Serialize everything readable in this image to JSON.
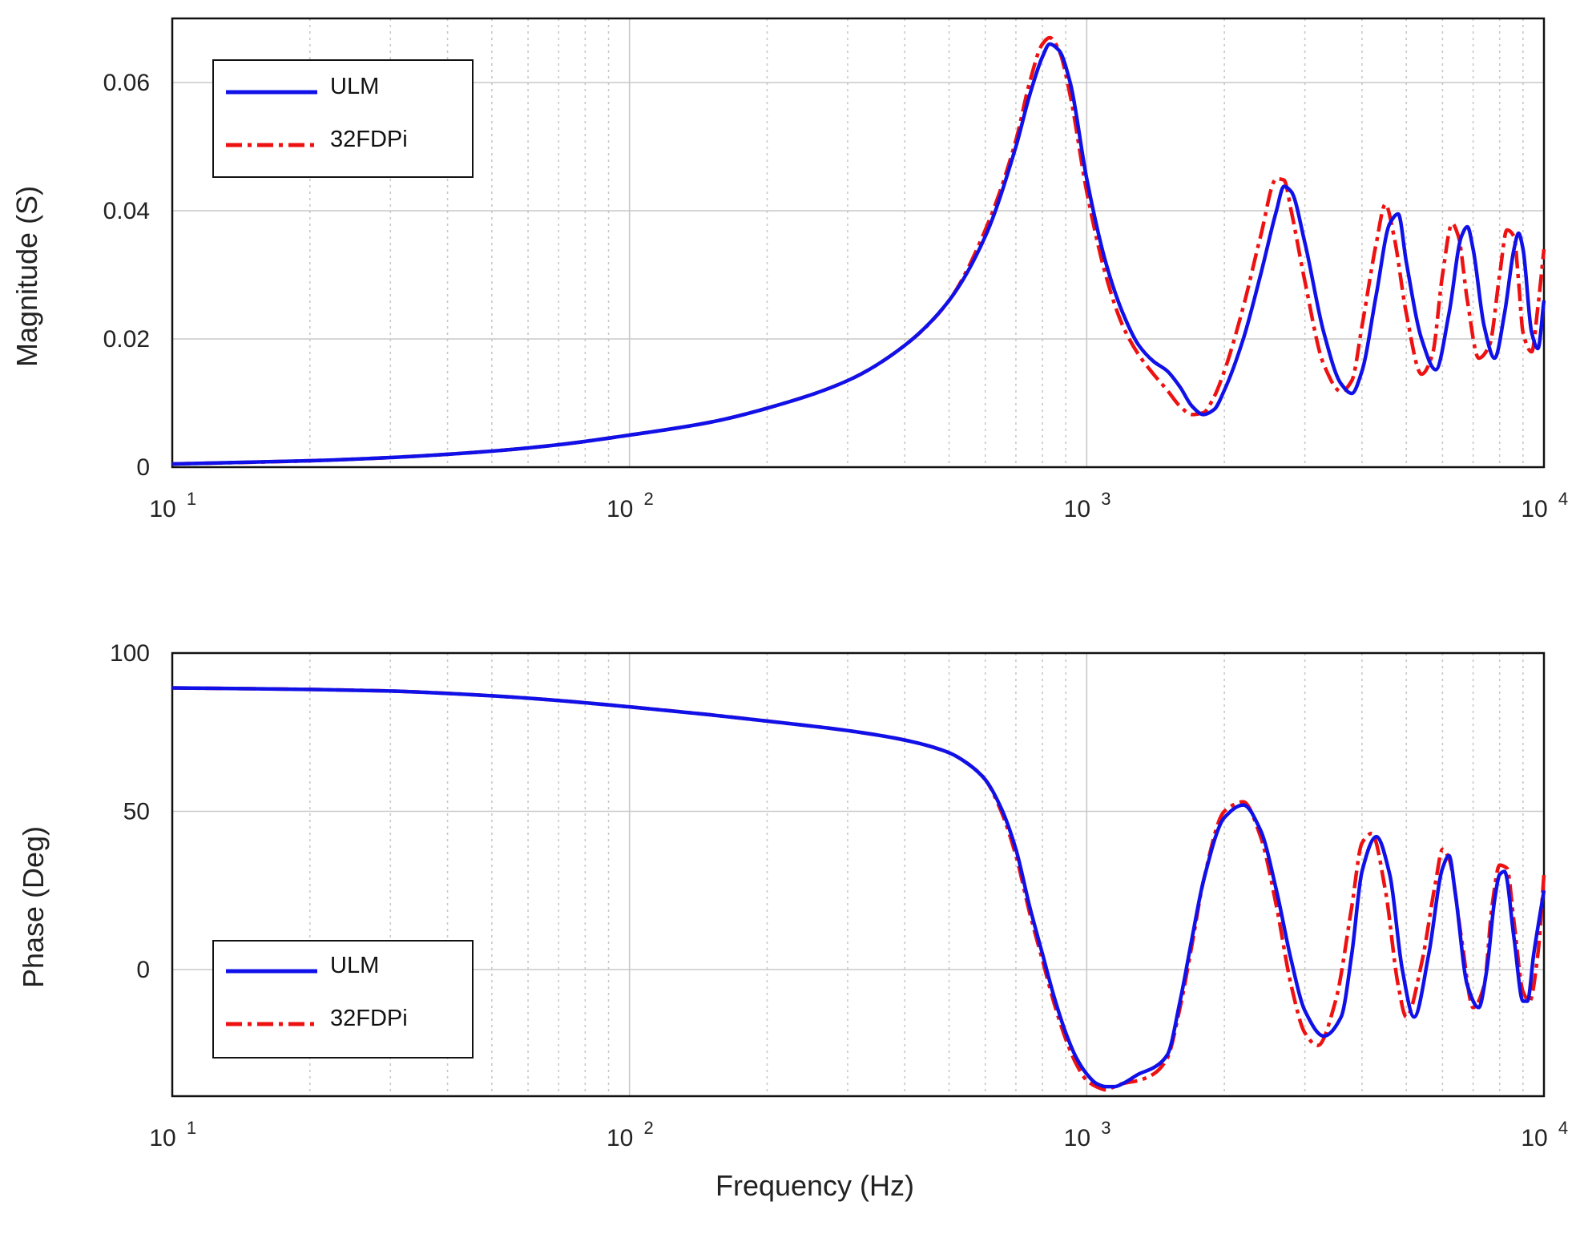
{
  "colors": {
    "ulm": "#1010e8",
    "fdpi": "#ee1111",
    "grid": "#c8c8c8",
    "axis": "#111111"
  },
  "figure": {
    "xlabel": "Frequency (Hz)"
  },
  "chart_data": [
    {
      "type": "line",
      "id": "magnitude",
      "title": "",
      "xlabel": "Frequency (Hz)",
      "ylabel": "Magnitude (S)",
      "xscale": "log",
      "xlim": [
        10,
        10000
      ],
      "ylim": [
        0,
        0.07
      ],
      "xticks": [
        {
          "base": "10",
          "exp": "1"
        },
        {
          "base": "10",
          "exp": "2"
        },
        {
          "base": "10",
          "exp": "3"
        },
        {
          "base": "10",
          "exp": "4"
        }
      ],
      "yticks": [
        {
          "value": 0,
          "label": "0"
        },
        {
          "value": 0.02,
          "label": "0.02"
        },
        {
          "value": 0.04,
          "label": "0.04"
        },
        {
          "value": 0.06,
          "label": "0.06"
        }
      ],
      "grid": true,
      "legend": {
        "placement": "top-left",
        "entries": [
          "ULM",
          "32FDPi"
        ]
      },
      "series": [
        {
          "name": "ULM",
          "color": "#1010e8",
          "style": "solid",
          "x": [
            10,
            20,
            30,
            50,
            70,
            100,
            150,
            200,
            300,
            400,
            500,
            600,
            700,
            750,
            800,
            830,
            870,
            920,
            1000,
            1100,
            1200,
            1300,
            1400,
            1500,
            1600,
            1700,
            1800,
            1900,
            2000,
            2200,
            2400,
            2600,
            2700,
            2800,
            3000,
            3300,
            3600,
            3800,
            4000,
            4300,
            4600,
            4800,
            5000,
            5400,
            5800,
            6200,
            6600,
            6800,
            7000,
            7400,
            7800,
            8200,
            8600,
            8800,
            9000,
            9400,
            9700,
            10000
          ],
          "y": [
            0.0005,
            0.001,
            0.0015,
            0.0025,
            0.0035,
            0.005,
            0.007,
            0.0092,
            0.0135,
            0.019,
            0.026,
            0.036,
            0.05,
            0.058,
            0.064,
            0.066,
            0.065,
            0.06,
            0.045,
            0.032,
            0.024,
            0.019,
            0.0165,
            0.015,
            0.0125,
            0.0095,
            0.0082,
            0.009,
            0.012,
            0.02,
            0.03,
            0.04,
            0.0438,
            0.043,
            0.035,
            0.021,
            0.013,
            0.0115,
            0.015,
            0.027,
            0.038,
            0.0395,
            0.032,
            0.02,
            0.0152,
            0.024,
            0.036,
            0.0375,
            0.034,
            0.022,
            0.017,
            0.024,
            0.034,
            0.0365,
            0.034,
            0.021,
            0.0185,
            0.026
          ]
        },
        {
          "name": "32FDPi",
          "color": "#ee1111",
          "style": "dashdot",
          "x": [
            10,
            20,
            30,
            50,
            70,
            100,
            150,
            200,
            300,
            400,
            500,
            600,
            700,
            750,
            800,
            830,
            870,
            920,
            1000,
            1100,
            1200,
            1300,
            1400,
            1500,
            1600,
            1700,
            1800,
            1900,
            2000,
            2200,
            2400,
            2600,
            2700,
            2800,
            3000,
            3300,
            3600,
            3800,
            4000,
            4300,
            4500,
            4700,
            5000,
            5400,
            5700,
            6000,
            6300,
            6500,
            6800,
            7200,
            7600,
            8000,
            8300,
            8600,
            8800,
            9000,
            9400,
            9700,
            10000
          ],
          "y": [
            0.0005,
            0.001,
            0.0015,
            0.0025,
            0.0035,
            0.005,
            0.007,
            0.0092,
            0.0135,
            0.019,
            0.026,
            0.037,
            0.051,
            0.06,
            0.066,
            0.067,
            0.065,
            0.058,
            0.043,
            0.03,
            0.022,
            0.0175,
            0.0145,
            0.012,
            0.0095,
            0.0082,
            0.0085,
            0.011,
            0.015,
            0.025,
            0.036,
            0.045,
            0.0448,
            0.04,
            0.029,
            0.016,
            0.0118,
            0.0135,
            0.022,
            0.035,
            0.041,
            0.036,
            0.024,
            0.0145,
            0.0175,
            0.03,
            0.038,
            0.036,
            0.026,
            0.017,
            0.019,
            0.03,
            0.037,
            0.036,
            0.029,
            0.021,
            0.018,
            0.025,
            0.034
          ]
        }
      ]
    },
    {
      "type": "line",
      "id": "phase",
      "title": "",
      "xlabel": "Frequency (Hz)",
      "ylabel": "Phase (Deg)",
      "xscale": "log",
      "xlim": [
        10,
        10000
      ],
      "ylim": [
        -40,
        100
      ],
      "xticks": [
        {
          "base": "10",
          "exp": "1"
        },
        {
          "base": "10",
          "exp": "2"
        },
        {
          "base": "10",
          "exp": "3"
        },
        {
          "base": "10",
          "exp": "4"
        }
      ],
      "yticks": [
        {
          "value": 0,
          "label": "0"
        },
        {
          "value": 50,
          "label": "50"
        },
        {
          "value": 100,
          "label": "100"
        }
      ],
      "grid": true,
      "legend": {
        "placement": "bottom-left",
        "entries": [
          "ULM",
          "32FDPi"
        ]
      },
      "series": [
        {
          "name": "ULM",
          "color": "#1010e8",
          "style": "solid",
          "x": [
            10,
            20,
            30,
            50,
            70,
            100,
            150,
            200,
            300,
            400,
            500,
            550,
            600,
            650,
            700,
            750,
            800,
            850,
            900,
            950,
            1000,
            1050,
            1100,
            1150,
            1200,
            1300,
            1400,
            1500,
            1600,
            1700,
            1800,
            2000,
            2200,
            2400,
            2600,
            2800,
            3000,
            3300,
            3600,
            3800,
            4000,
            4300,
            4600,
            4900,
            5200,
            5600,
            6000,
            6200,
            6400,
            6800,
            7200,
            7500,
            7800,
            8000,
            8200,
            8600,
            9000,
            9200,
            9500,
            10000
          ],
          "y": [
            89,
            88.5,
            88,
            86.5,
            85,
            83,
            80.5,
            78.5,
            75.5,
            72.5,
            68.5,
            65,
            60,
            51,
            38,
            20,
            5,
            -9,
            -20,
            -28,
            -33,
            -36,
            -37,
            -37,
            -36,
            -33,
            -31,
            -27,
            -10,
            10,
            28,
            48,
            52,
            44,
            25,
            3,
            -13,
            -21,
            -15,
            5,
            31,
            42,
            30,
            0,
            -15,
            5,
            32,
            36,
            24,
            -5,
            -12,
            0,
            22,
            30,
            31,
            10,
            -10,
            -10,
            5,
            25
          ]
        },
        {
          "name": "32FDPi",
          "color": "#ee1111",
          "style": "dashdot",
          "x": [
            10,
            20,
            30,
            50,
            70,
            100,
            150,
            200,
            300,
            400,
            500,
            550,
            600,
            650,
            700,
            750,
            800,
            850,
            900,
            950,
            1000,
            1050,
            1100,
            1150,
            1200,
            1300,
            1400,
            1500,
            1600,
            1700,
            1800,
            2000,
            2200,
            2400,
            2600,
            2800,
            3000,
            3200,
            3500,
            3800,
            4000,
            4200,
            4500,
            4800,
            5000,
            5400,
            5800,
            6000,
            6200,
            6600,
            7000,
            7400,
            7700,
            8000,
            8300,
            8600,
            9000,
            9300,
            9700,
            10000
          ],
          "y": [
            89,
            88.5,
            88,
            86.5,
            85,
            83,
            80.5,
            78.5,
            75.5,
            72.5,
            68.5,
            65,
            60,
            50,
            36,
            18,
            3,
            -11,
            -22,
            -30,
            -35,
            -37,
            -38,
            -37,
            -36,
            -35,
            -33,
            -28,
            -12,
            8,
            28,
            50,
            53,
            42,
            20,
            -5,
            -20,
            -24,
            -10,
            20,
            40,
            43,
            25,
            -5,
            -15,
            2,
            28,
            38,
            35,
            10,
            -12,
            -5,
            20,
            33,
            32,
            15,
            -7,
            -10,
            5,
            30
          ]
        }
      ]
    }
  ]
}
